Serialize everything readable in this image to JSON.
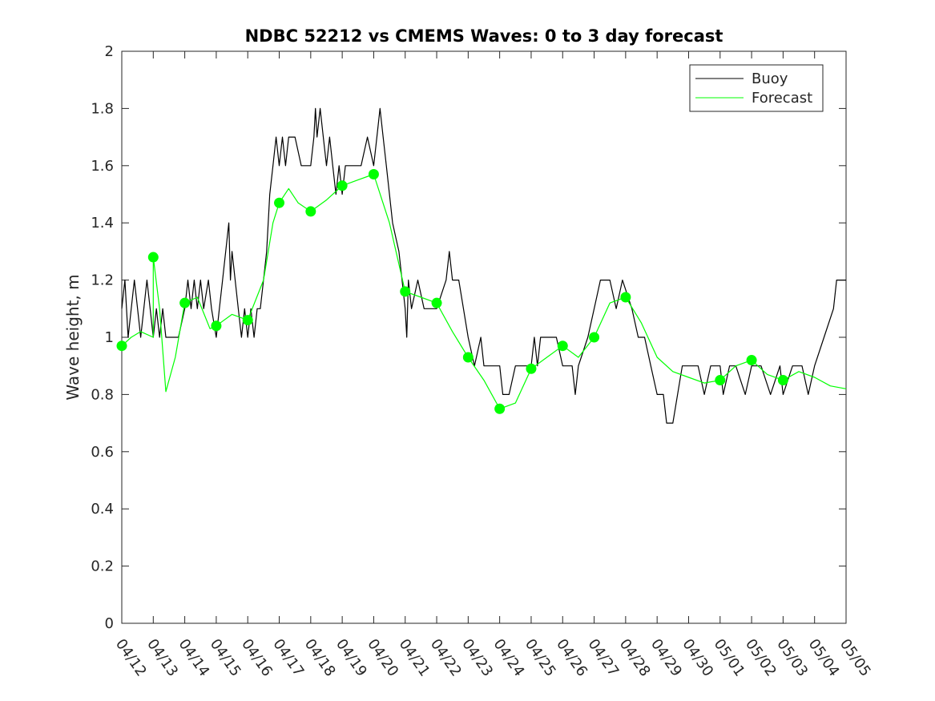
{
  "chart_data": {
    "type": "line",
    "title": "NDBC 52212 vs CMEMS Waves: 0 to 3 day forecast",
    "xlabel": "",
    "ylabel": "Wave height, m",
    "x_tick_labels": [
      "04/12",
      "04/13",
      "04/14",
      "04/15",
      "04/16",
      "04/17",
      "04/18",
      "04/19",
      "04/20",
      "04/21",
      "04/22",
      "04/23",
      "04/24",
      "04/25",
      "04/26",
      "04/27",
      "04/28",
      "04/29",
      "04/30",
      "05/01",
      "05/02",
      "05/03",
      "05/04",
      "05/05"
    ],
    "y_ticks": [
      0,
      0.2,
      0.4,
      0.6,
      0.8,
      1,
      1.2,
      1.4,
      1.6,
      1.8,
      2
    ],
    "y_tick_labels": [
      "0",
      "0.2",
      "0.4",
      "0.6",
      "0.8",
      "1",
      "1.2",
      "1.4",
      "1.6",
      "1.8",
      "2"
    ],
    "xlim": [
      "04/12",
      "05/05"
    ],
    "ylim": [
      0,
      2
    ],
    "legend": {
      "position": "top-right",
      "entries": [
        "Buoy",
        "Forecast"
      ]
    },
    "colors": {
      "buoy": "#000000",
      "forecast": "#00ff00"
    },
    "series": [
      {
        "name": "Buoy",
        "points": [
          [
            0,
            1.1
          ],
          [
            0.1,
            1.2
          ],
          [
            0.2,
            1.0
          ],
          [
            0.3,
            1.1
          ],
          [
            0.4,
            1.2
          ],
          [
            0.5,
            1.1
          ],
          [
            0.6,
            1.0
          ],
          [
            0.7,
            1.1
          ],
          [
            0.8,
            1.2
          ],
          [
            0.9,
            1.1
          ],
          [
            1.0,
            1.0
          ],
          [
            1.1,
            1.1
          ],
          [
            1.2,
            1.0
          ],
          [
            1.3,
            1.1
          ],
          [
            1.4,
            1.0
          ],
          [
            1.5,
            1.0
          ],
          [
            1.8,
            1.0
          ],
          [
            2.0,
            1.1
          ],
          [
            2.1,
            1.2
          ],
          [
            2.2,
            1.1
          ],
          [
            2.3,
            1.2
          ],
          [
            2.4,
            1.1
          ],
          [
            2.5,
            1.2
          ],
          [
            2.6,
            1.1
          ],
          [
            2.75,
            1.2
          ],
          [
            2.85,
            1.1
          ],
          [
            3.0,
            1.0
          ],
          [
            3.1,
            1.1
          ],
          [
            3.2,
            1.2
          ],
          [
            3.3,
            1.3
          ],
          [
            3.4,
            1.4
          ],
          [
            3.45,
            1.2
          ],
          [
            3.5,
            1.3
          ],
          [
            3.6,
            1.2
          ],
          [
            3.7,
            1.1
          ],
          [
            3.8,
            1.0
          ],
          [
            3.9,
            1.1
          ],
          [
            4.0,
            1.0
          ],
          [
            4.1,
            1.1
          ],
          [
            4.2,
            1.0
          ],
          [
            4.3,
            1.1
          ],
          [
            4.4,
            1.1
          ],
          [
            4.5,
            1.2
          ],
          [
            4.6,
            1.3
          ],
          [
            4.7,
            1.5
          ],
          [
            4.8,
            1.6
          ],
          [
            4.9,
            1.7
          ],
          [
            5.0,
            1.6
          ],
          [
            5.1,
            1.7
          ],
          [
            5.2,
            1.6
          ],
          [
            5.3,
            1.7
          ],
          [
            5.5,
            1.7
          ],
          [
            5.7,
            1.6
          ],
          [
            6.0,
            1.6
          ],
          [
            6.1,
            1.7
          ],
          [
            6.15,
            1.8
          ],
          [
            6.2,
            1.7
          ],
          [
            6.3,
            1.8
          ],
          [
            6.4,
            1.7
          ],
          [
            6.5,
            1.6
          ],
          [
            6.6,
            1.7
          ],
          [
            6.7,
            1.6
          ],
          [
            6.8,
            1.5
          ],
          [
            6.9,
            1.6
          ],
          [
            7.0,
            1.5
          ],
          [
            7.1,
            1.6
          ],
          [
            7.3,
            1.6
          ],
          [
            7.6,
            1.6
          ],
          [
            7.8,
            1.7
          ],
          [
            8.0,
            1.6
          ],
          [
            8.1,
            1.7
          ],
          [
            8.2,
            1.8
          ],
          [
            8.3,
            1.7
          ],
          [
            8.4,
            1.6
          ],
          [
            8.5,
            1.5
          ],
          [
            8.6,
            1.4
          ],
          [
            8.7,
            1.35
          ],
          [
            8.8,
            1.3
          ],
          [
            8.9,
            1.2
          ],
          [
            9.0,
            1.1
          ],
          [
            9.05,
            1.0
          ],
          [
            9.1,
            1.2
          ],
          [
            9.2,
            1.1
          ],
          [
            9.4,
            1.2
          ],
          [
            9.6,
            1.1
          ],
          [
            10.0,
            1.1
          ],
          [
            10.3,
            1.2
          ],
          [
            10.4,
            1.3
          ],
          [
            10.5,
            1.2
          ],
          [
            10.7,
            1.2
          ],
          [
            11.0,
            1.0
          ],
          [
            11.2,
            0.9
          ],
          [
            11.4,
            1.0
          ],
          [
            11.5,
            0.9
          ],
          [
            11.8,
            0.9
          ],
          [
            12.0,
            0.9
          ],
          [
            12.1,
            0.8
          ],
          [
            12.3,
            0.8
          ],
          [
            12.5,
            0.9
          ],
          [
            12.7,
            0.9
          ],
          [
            13.0,
            0.9
          ],
          [
            13.1,
            1.0
          ],
          [
            13.2,
            0.9
          ],
          [
            13.3,
            1.0
          ],
          [
            13.5,
            1.0
          ],
          [
            13.8,
            1.0
          ],
          [
            14.0,
            0.9
          ],
          [
            14.3,
            0.9
          ],
          [
            14.4,
            0.8
          ],
          [
            14.5,
            0.9
          ],
          [
            14.8,
            1.0
          ],
          [
            15.0,
            1.1
          ],
          [
            15.2,
            1.2
          ],
          [
            15.5,
            1.2
          ],
          [
            15.7,
            1.1
          ],
          [
            15.9,
            1.2
          ],
          [
            16.2,
            1.1
          ],
          [
            16.4,
            1.0
          ],
          [
            16.6,
            1.0
          ],
          [
            16.8,
            0.9
          ],
          [
            17.0,
            0.8
          ],
          [
            17.2,
            0.8
          ],
          [
            17.3,
            0.7
          ],
          [
            17.5,
            0.7
          ],
          [
            17.8,
            0.9
          ],
          [
            18.0,
            0.9
          ],
          [
            18.3,
            0.9
          ],
          [
            18.5,
            0.8
          ],
          [
            18.7,
            0.9
          ],
          [
            19.0,
            0.9
          ],
          [
            19.1,
            0.8
          ],
          [
            19.3,
            0.9
          ],
          [
            19.5,
            0.9
          ],
          [
            19.8,
            0.8
          ],
          [
            20.0,
            0.9
          ],
          [
            20.3,
            0.9
          ],
          [
            20.6,
            0.8
          ],
          [
            20.9,
            0.9
          ],
          [
            21.0,
            0.8
          ],
          [
            21.3,
            0.9
          ],
          [
            21.6,
            0.9
          ],
          [
            21.8,
            0.8
          ],
          [
            22.0,
            0.9
          ],
          [
            22.3,
            1.0
          ],
          [
            22.6,
            1.1
          ],
          [
            22.7,
            1.2
          ],
          [
            23.0,
            1.2
          ]
        ]
      },
      {
        "name": "Forecast",
        "points": [
          [
            0,
            0.97
          ],
          [
            0.3,
            1.0
          ],
          [
            0.6,
            1.02
          ],
          [
            1.0,
            1.0
          ],
          [
            1.0,
            1.28
          ],
          [
            1.2,
            1.1
          ],
          [
            1.4,
            0.81
          ],
          [
            1.7,
            0.93
          ],
          [
            2.0,
            1.12
          ],
          [
            2.4,
            1.14
          ],
          [
            2.8,
            1.03
          ],
          [
            3.0,
            1.04
          ],
          [
            3.5,
            1.08
          ],
          [
            4.0,
            1.06
          ],
          [
            4.5,
            1.2
          ],
          [
            4.8,
            1.4
          ],
          [
            5.0,
            1.47
          ],
          [
            5.3,
            1.52
          ],
          [
            5.6,
            1.47
          ],
          [
            6.0,
            1.44
          ],
          [
            6.5,
            1.48
          ],
          [
            7.0,
            1.53
          ],
          [
            7.5,
            1.55
          ],
          [
            8.0,
            1.57
          ],
          [
            8.5,
            1.4
          ],
          [
            9.0,
            1.16
          ],
          [
            9.5,
            1.14
          ],
          [
            10.0,
            1.12
          ],
          [
            10.5,
            1.02
          ],
          [
            11.0,
            0.93
          ],
          [
            11.5,
            0.85
          ],
          [
            12.0,
            0.75
          ],
          [
            12.5,
            0.77
          ],
          [
            13.0,
            0.89
          ],
          [
            13.5,
            0.93
          ],
          [
            14.0,
            0.97
          ],
          [
            14.5,
            0.93
          ],
          [
            15.0,
            1.0
          ],
          [
            15.5,
            1.12
          ],
          [
            16.0,
            1.14
          ],
          [
            16.5,
            1.05
          ],
          [
            17.0,
            0.93
          ],
          [
            17.5,
            0.88
          ],
          [
            18.0,
            0.86
          ],
          [
            18.5,
            0.84
          ],
          [
            19.0,
            0.85
          ],
          [
            19.5,
            0.9
          ],
          [
            20.0,
            0.92
          ],
          [
            20.5,
            0.87
          ],
          [
            21.0,
            0.85
          ],
          [
            21.5,
            0.88
          ],
          [
            22.0,
            0.86
          ],
          [
            22.5,
            0.83
          ],
          [
            23.0,
            0.82
          ]
        ]
      }
    ],
    "forecast_markers": [
      [
        0,
        0.97
      ],
      [
        1,
        1.28
      ],
      [
        2,
        1.12
      ],
      [
        3,
        1.04
      ],
      [
        4,
        1.06
      ],
      [
        5,
        1.47
      ],
      [
        6,
        1.44
      ],
      [
        7,
        1.53
      ],
      [
        8,
        1.57
      ],
      [
        9,
        1.16
      ],
      [
        10,
        1.12
      ],
      [
        11,
        0.93
      ],
      [
        12,
        0.75
      ],
      [
        13,
        0.89
      ],
      [
        14,
        0.97
      ],
      [
        15,
        1.0
      ],
      [
        16,
        1.14
      ],
      [
        19,
        0.85
      ],
      [
        20,
        0.92
      ],
      [
        21,
        0.85
      ]
    ]
  }
}
